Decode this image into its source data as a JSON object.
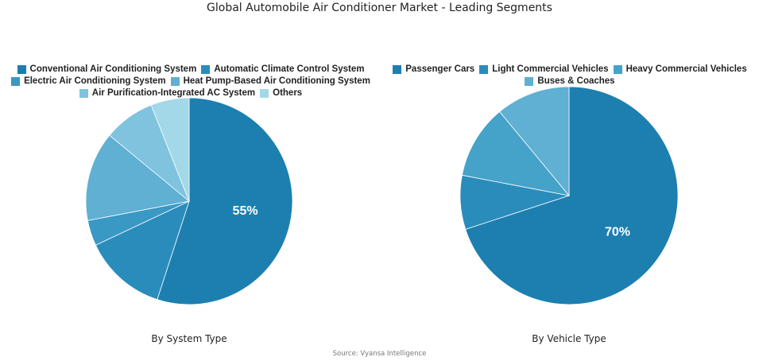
{
  "title": "Global Automobile Air Conditioner Market - Leading Segments",
  "source": "Source: Vyansa Intelligence",
  "chart_data": [
    {
      "type": "pie",
      "title": "By System Type",
      "labels": [
        "Conventional Air Conditioning System",
        "Automatic Climate Control System",
        "Electric Air Conditioning System",
        "Heat Pump-Based Air Conditioning System",
        "Air Purification-Integrated AC System",
        "Others"
      ],
      "values": [
        55,
        13,
        4,
        14,
        8,
        6
      ],
      "colors": [
        "#1c7fb0",
        "#2a8cbb",
        "#3a98c5",
        "#5fb0d2",
        "#7fc3de",
        "#a3d8e8"
      ],
      "data_labels": [
        "55%",
        "",
        "",
        "",
        "",
        ""
      ],
      "start_angle_deg": 0,
      "direction": "clockwise",
      "legend_position": "top"
    },
    {
      "type": "pie",
      "title": "By Vehicle Type",
      "labels": [
        "Passenger Cars",
        "Light Commercial Vehicles",
        "Heavy Commercial Vehicles",
        "Buses & Coaches"
      ],
      "values": [
        70,
        8,
        11,
        11
      ],
      "colors": [
        "#1c7fb0",
        "#2a8cbb",
        "#45a2c9",
        "#5fb0d2"
      ],
      "data_labels": [
        "70%",
        "",
        "",
        ""
      ],
      "start_angle_deg": 0,
      "direction": "clockwise",
      "legend_position": "top"
    }
  ]
}
